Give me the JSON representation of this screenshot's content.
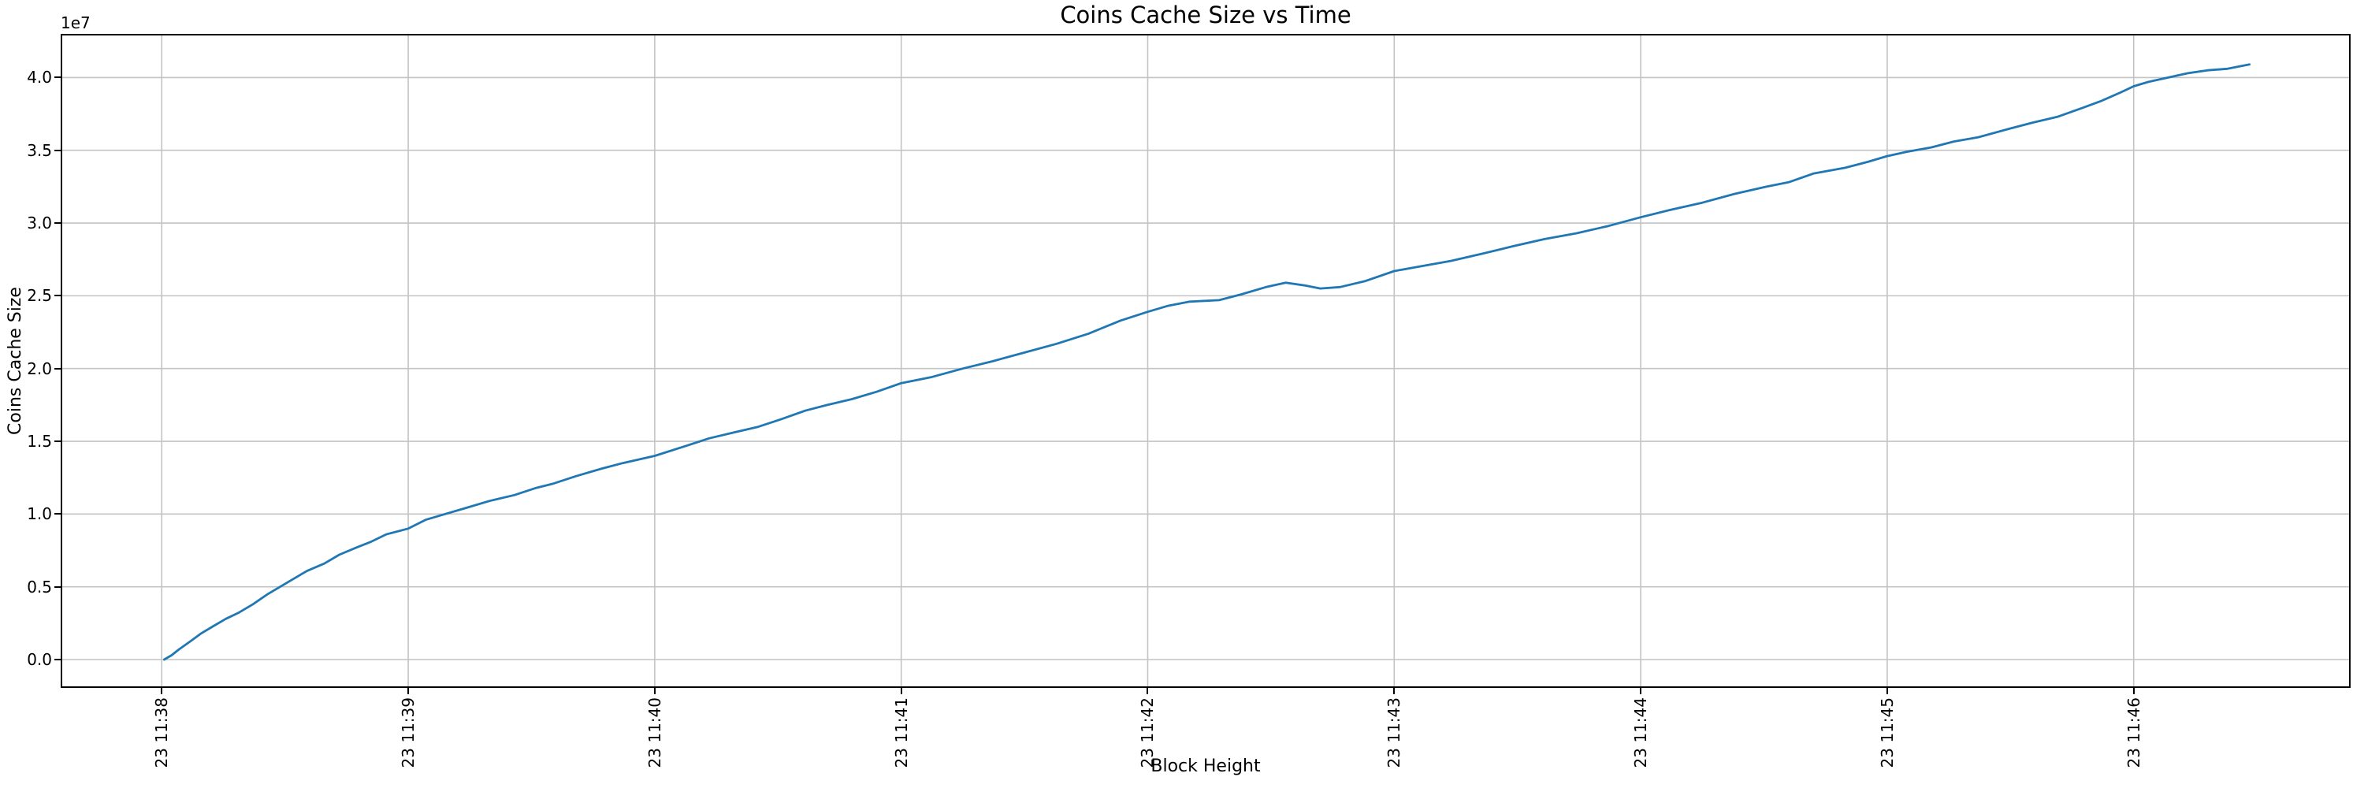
{
  "chart": {
    "title": "Coins Cache Size vs Time",
    "xlabel": "Block Height",
    "ylabel": "Coins Cache Size",
    "y_offset_label": "1e7"
  },
  "colors": {
    "line": "#1f77b4",
    "grid": "#c3c3c3",
    "spine": "#000000",
    "background": "#ffffff",
    "text": "#000000"
  },
  "chart_data": {
    "type": "line",
    "title": "Coins Cache Size vs Time",
    "xlabel": "Block Height",
    "ylabel": "Coins Cache Size",
    "y_scale_offset_text": "1e7",
    "grid": true,
    "legend": false,
    "x_unit": "minutes after 23 11:38",
    "xlim": [
      -0.41,
      8.88
    ],
    "ylim": [
      -1950000,
      43000000
    ],
    "xticks": [
      {
        "minute": 0,
        "label": "23 11:38"
      },
      {
        "minute": 1,
        "label": "23 11:39"
      },
      {
        "minute": 2,
        "label": "23 11:40"
      },
      {
        "minute": 3,
        "label": "23 11:41"
      },
      {
        "minute": 4,
        "label": "23 11:42"
      },
      {
        "minute": 5,
        "label": "23 11:43"
      },
      {
        "minute": 6,
        "label": "23 11:44"
      },
      {
        "minute": 7,
        "label": "23 11:45"
      },
      {
        "minute": 8,
        "label": "23 11:46"
      }
    ],
    "yticks": [
      {
        "value": 0,
        "label": "0.0"
      },
      {
        "value": 5000000,
        "label": "0.5"
      },
      {
        "value": 10000000,
        "label": "1.0"
      },
      {
        "value": 15000000,
        "label": "1.5"
      },
      {
        "value": 20000000,
        "label": "2.0"
      },
      {
        "value": 25000000,
        "label": "2.5"
      },
      {
        "value": 30000000,
        "label": "3.0"
      },
      {
        "value": 35000000,
        "label": "3.5"
      },
      {
        "value": 40000000,
        "label": "4.0"
      }
    ],
    "series": [
      {
        "name": "coins_cache_size",
        "color": "#1f77b4",
        "points": [
          [
            0.01,
            0
          ],
          [
            0.04,
            300000
          ],
          [
            0.07,
            700000
          ],
          [
            0.12,
            1300000
          ],
          [
            0.16,
            1800000
          ],
          [
            0.21,
            2300000
          ],
          [
            0.26,
            2800000
          ],
          [
            0.31,
            3200000
          ],
          [
            0.37,
            3800000
          ],
          [
            0.43,
            4500000
          ],
          [
            0.48,
            5000000
          ],
          [
            0.53,
            5500000
          ],
          [
            0.59,
            6100000
          ],
          [
            0.66,
            6600000
          ],
          [
            0.72,
            7200000
          ],
          [
            0.79,
            7700000
          ],
          [
            0.85,
            8100000
          ],
          [
            0.91,
            8600000
          ],
          [
            1.0,
            9000000
          ],
          [
            1.07,
            9600000
          ],
          [
            1.15,
            10000000
          ],
          [
            1.23,
            10400000
          ],
          [
            1.33,
            10900000
          ],
          [
            1.43,
            11300000
          ],
          [
            1.52,
            11800000
          ],
          [
            1.59,
            12100000
          ],
          [
            1.68,
            12600000
          ],
          [
            1.78,
            13100000
          ],
          [
            1.87,
            13500000
          ],
          [
            2.0,
            14000000
          ],
          [
            2.13,
            14700000
          ],
          [
            2.22,
            15200000
          ],
          [
            2.32,
            15600000
          ],
          [
            2.42,
            16000000
          ],
          [
            2.51,
            16500000
          ],
          [
            2.61,
            17100000
          ],
          [
            2.7,
            17500000
          ],
          [
            2.8,
            17900000
          ],
          [
            2.9,
            18400000
          ],
          [
            3.0,
            19000000
          ],
          [
            3.12,
            19400000
          ],
          [
            3.25,
            20000000
          ],
          [
            3.37,
            20500000
          ],
          [
            3.5,
            21100000
          ],
          [
            3.63,
            21700000
          ],
          [
            3.76,
            22400000
          ],
          [
            3.89,
            23300000
          ],
          [
            4.0,
            23900000
          ],
          [
            4.08,
            24300000
          ],
          [
            4.17,
            24600000
          ],
          [
            4.29,
            24700000
          ],
          [
            4.38,
            25100000
          ],
          [
            4.48,
            25600000
          ],
          [
            4.56,
            25900000
          ],
          [
            4.64,
            25700000
          ],
          [
            4.7,
            25500000
          ],
          [
            4.78,
            25600000
          ],
          [
            4.88,
            26000000
          ],
          [
            5.0,
            26700000
          ],
          [
            5.1,
            27000000
          ],
          [
            5.23,
            27400000
          ],
          [
            5.36,
            27900000
          ],
          [
            5.48,
            28400000
          ],
          [
            5.61,
            28900000
          ],
          [
            5.74,
            29300000
          ],
          [
            5.87,
            29800000
          ],
          [
            6.0,
            30400000
          ],
          [
            6.12,
            30900000
          ],
          [
            6.25,
            31400000
          ],
          [
            6.38,
            32000000
          ],
          [
            6.51,
            32500000
          ],
          [
            6.6,
            32800000
          ],
          [
            6.7,
            33400000
          ],
          [
            6.83,
            33800000
          ],
          [
            6.92,
            34200000
          ],
          [
            7.0,
            34600000
          ],
          [
            7.08,
            34900000
          ],
          [
            7.18,
            35200000
          ],
          [
            7.27,
            35600000
          ],
          [
            7.37,
            35900000
          ],
          [
            7.5,
            36500000
          ],
          [
            7.59,
            36900000
          ],
          [
            7.69,
            37300000
          ],
          [
            7.79,
            37900000
          ],
          [
            7.87,
            38400000
          ],
          [
            7.95,
            39000000
          ],
          [
            8.0,
            39400000
          ],
          [
            8.06,
            39700000
          ],
          [
            8.14,
            40000000
          ],
          [
            8.22,
            40300000
          ],
          [
            8.3,
            40500000
          ],
          [
            8.38,
            40600000
          ],
          [
            8.47,
            40900000
          ]
        ]
      }
    ]
  }
}
